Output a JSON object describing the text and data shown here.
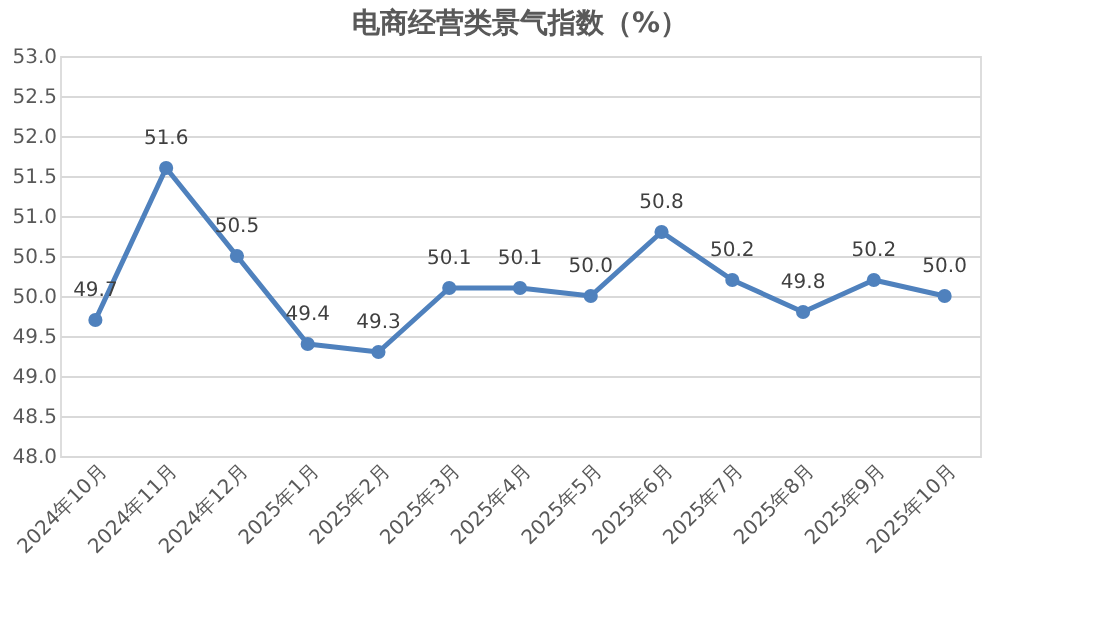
{
  "chart_data": {
    "type": "line",
    "title": "电商经营类景气指数（%）",
    "categories": [
      "2024年10月",
      "2024年11月",
      "2024年12月",
      "2025年1月",
      "2025年2月",
      "2025年3月",
      "2025年4月",
      "2025年5月",
      "2025年6月",
      "2025年7月",
      "2025年8月",
      "2025年9月",
      "2025年10月"
    ],
    "series": [
      {
        "color": "#4f81bd",
        "values": [
          49.7,
          51.6,
          50.5,
          49.4,
          49.3,
          50.1,
          50.1,
          50.0,
          50.8,
          50.2,
          49.8,
          50.2,
          50.0
        ]
      }
    ],
    "value_labels": [
      "49.7",
      "51.6",
      "50.5",
      "49.4",
      "49.3",
      "50.1",
      "50.1",
      "50.0",
      "50.8",
      "50.2",
      "49.8",
      "50.2",
      "50.0"
    ],
    "ylim": [
      48.0,
      53.0
    ],
    "yticks": [
      {
        "value": 48,
        "label": "48.0"
      },
      {
        "value": 48.5,
        "label": "48.5"
      },
      {
        "value": 49,
        "label": "49.0"
      },
      {
        "value": 49.5,
        "label": "49.5"
      },
      {
        "value": 50,
        "label": "50.0"
      },
      {
        "value": 50.5,
        "label": "50.5"
      },
      {
        "value": 51,
        "label": "51.0"
      },
      {
        "value": 51.5,
        "label": "51.5"
      },
      {
        "value": 52,
        "label": "52.0"
      },
      {
        "value": 52.5,
        "label": "52.5"
      },
      {
        "value": 53,
        "label": "53.0"
      }
    ],
    "grid": "y",
    "marker": "circle",
    "line_style": "solid"
  }
}
